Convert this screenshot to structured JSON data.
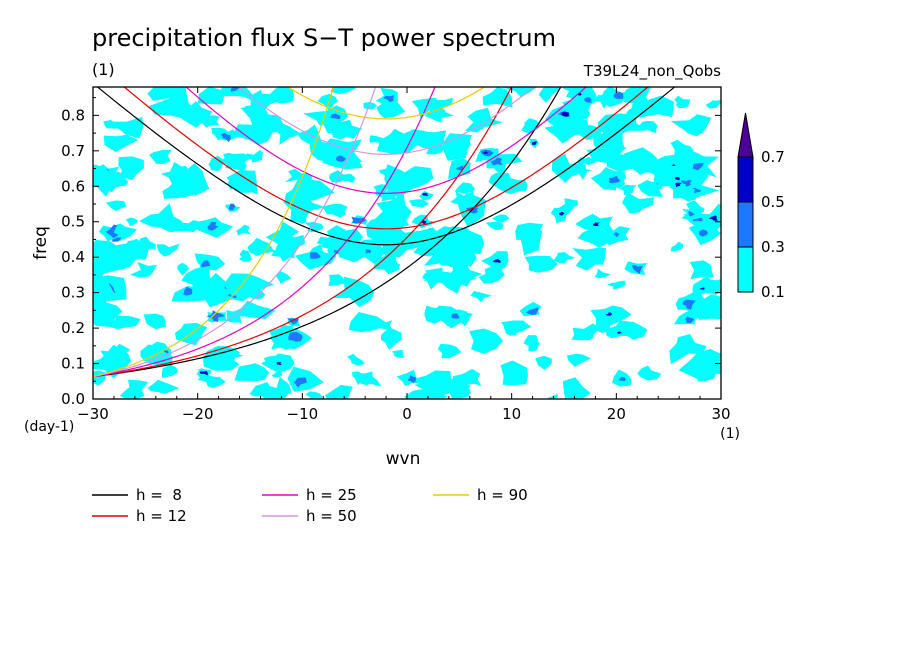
{
  "chart_data": {
    "type": "contour",
    "title": "precipitation flux S−T power spectrum",
    "subtitle_left": "(1)",
    "subtitle_right": "T39L24_non_Qobs",
    "xlabel": "wvn",
    "ylabel": "freq",
    "x_unit": "(1)",
    "y_unit": "(day-1)",
    "xlim": [
      -30,
      30
    ],
    "ylim": [
      0,
      0.88
    ],
    "x_ticks": [
      -30,
      -20,
      -10,
      0,
      10,
      20,
      30
    ],
    "x_tick_labels": [
      "−30",
      "−20",
      "−10",
      "0",
      "10",
      "20",
      "30"
    ],
    "y_ticks": [
      0,
      0.1,
      0.2,
      0.3,
      0.4,
      0.5,
      0.6,
      0.7,
      0.8
    ],
    "y_tick_labels": [
      "0.0",
      "0.1",
      "0.2",
      "0.3",
      "0.4",
      "0.5",
      "0.6",
      "0.7",
      "0.8"
    ],
    "contour_levels": [
      0.1,
      0.3,
      0.5,
      0.7
    ],
    "colorbar": {
      "labels": [
        "0.1",
        "0.3",
        "0.5",
        "0.7"
      ],
      "colors": [
        "#00ffff",
        "#1e78ff",
        "#0000c8",
        "#4b0096"
      ]
    },
    "series": [
      {
        "name": "h =  8",
        "h": 8,
        "color": "#000000"
      },
      {
        "name": "h = 12",
        "h": 12,
        "color": "#e60000"
      },
      {
        "name": "h = 25",
        "h": 25,
        "color": "#e600c8"
      },
      {
        "name": "h = 50",
        "h": 50,
        "color": "#d296e6"
      },
      {
        "name": "h = 90",
        "h": 90,
        "color": "#f0c800"
      }
    ]
  }
}
